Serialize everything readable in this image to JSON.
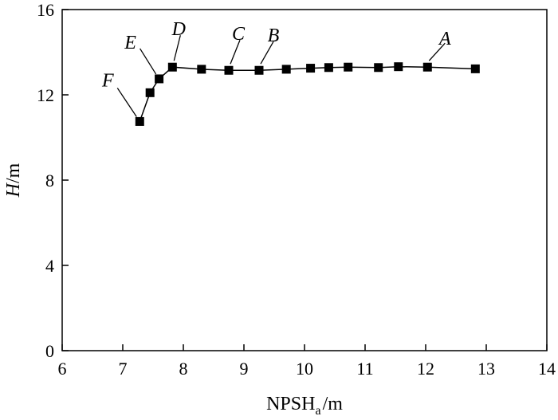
{
  "chart_data": {
    "type": "line",
    "title": "",
    "xlabel": {
      "main": "NPSH",
      "sub": "a",
      "unit": "/m"
    },
    "ylabel": {
      "italic": "H",
      "unit": "/m"
    },
    "xlim": [
      6,
      14
    ],
    "ylim": [
      0,
      16
    ],
    "xticks": [
      6,
      7,
      8,
      9,
      10,
      11,
      12,
      13,
      14
    ],
    "yticks": [
      0,
      4,
      8,
      12,
      16
    ],
    "grid": false,
    "legend": "none",
    "series": [
      {
        "marker": "square",
        "color": "#000000",
        "x": [
          7.28,
          7.45,
          7.6,
          7.82,
          8.3,
          8.75,
          9.25,
          9.7,
          10.1,
          10.4,
          10.72,
          11.22,
          11.55,
          12.03,
          12.82
        ],
        "y": [
          10.75,
          12.1,
          12.75,
          13.3,
          13.2,
          13.15,
          13.15,
          13.2,
          13.25,
          13.28,
          13.3,
          13.28,
          13.32,
          13.3,
          13.22
        ]
      }
    ],
    "annotations": [
      {
        "text": "F",
        "point": [
          7.28,
          10.75
        ]
      },
      {
        "text": "E",
        "point": [
          7.6,
          12.75
        ]
      },
      {
        "text": "D",
        "point": [
          7.82,
          13.3
        ]
      },
      {
        "text": "C",
        "point": [
          8.75,
          13.15
        ]
      },
      {
        "text": "B",
        "point": [
          9.25,
          13.15
        ]
      },
      {
        "text": "A",
        "point": [
          12.03,
          13.3
        ]
      }
    ]
  }
}
